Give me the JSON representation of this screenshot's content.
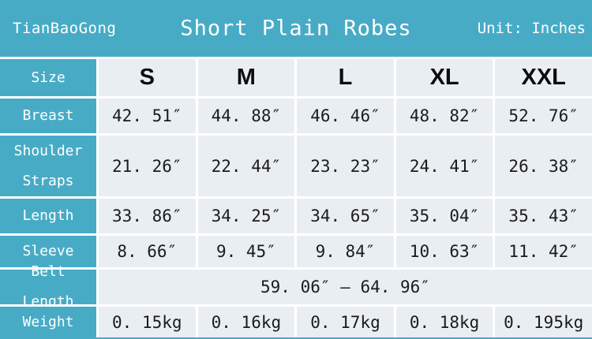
{
  "header": {
    "brand": "TianBaoGong",
    "title": "Short Plain Robes",
    "unit": "Unit: Inches"
  },
  "table": {
    "labels": [
      "Size",
      "Breast",
      "Shoulder Straps",
      "Length",
      "Sleeve",
      "Belt Length",
      "Weight"
    ],
    "sizes": [
      "S",
      "M",
      "L",
      "XL",
      "XXL"
    ],
    "breast": [
      "42. 51″",
      "44. 88″",
      "46. 46″",
      "48. 82″",
      "52. 76″"
    ],
    "shoulder_straps": [
      "21. 26″",
      "22. 44″",
      "23. 23″",
      "24. 41″",
      "26. 38″"
    ],
    "length": [
      "33. 86″",
      "34. 25″",
      "34. 65″",
      "35. 04″",
      "35. 43″"
    ],
    "sleeve": [
      "8. 66″",
      "9. 45″",
      "9. 84″",
      "10. 63″",
      "11. 42″"
    ],
    "belt_length": "59. 06″ – 64. 96″",
    "weight": [
      "0. 15kg",
      "0. 16kg",
      "0. 17kg",
      "0. 18kg",
      "0. 195kg"
    ]
  },
  "colors": {
    "accent_teal": "#48ABC6",
    "cell_background": "#E9EEF2",
    "value_text": "#1B1B1B",
    "header_text": "#FFFFFF"
  },
  "chart_data": {
    "type": "table",
    "title": "Short Plain Robes",
    "brand": "TianBaoGong",
    "unit": "Inches",
    "columns": [
      "Size",
      "S",
      "M",
      "L",
      "XL",
      "XXL"
    ],
    "rows": [
      {
        "label": "Breast",
        "values": [
          42.51,
          44.88,
          46.46,
          48.82,
          52.76
        ]
      },
      {
        "label": "Shoulder Straps",
        "values": [
          21.26,
          22.44,
          23.23,
          24.41,
          26.38
        ]
      },
      {
        "label": "Length",
        "values": [
          33.86,
          34.25,
          34.65,
          35.04,
          35.43
        ]
      },
      {
        "label": "Sleeve",
        "values": [
          8.66,
          9.45,
          9.84,
          10.63,
          11.42
        ]
      },
      {
        "label": "Belt Length",
        "values": "59.06 – 64.96 (all sizes)"
      },
      {
        "label": "Weight",
        "values": [
          "0.15kg",
          "0.16kg",
          "0.17kg",
          "0.18kg",
          "0.195kg"
        ]
      }
    ]
  }
}
